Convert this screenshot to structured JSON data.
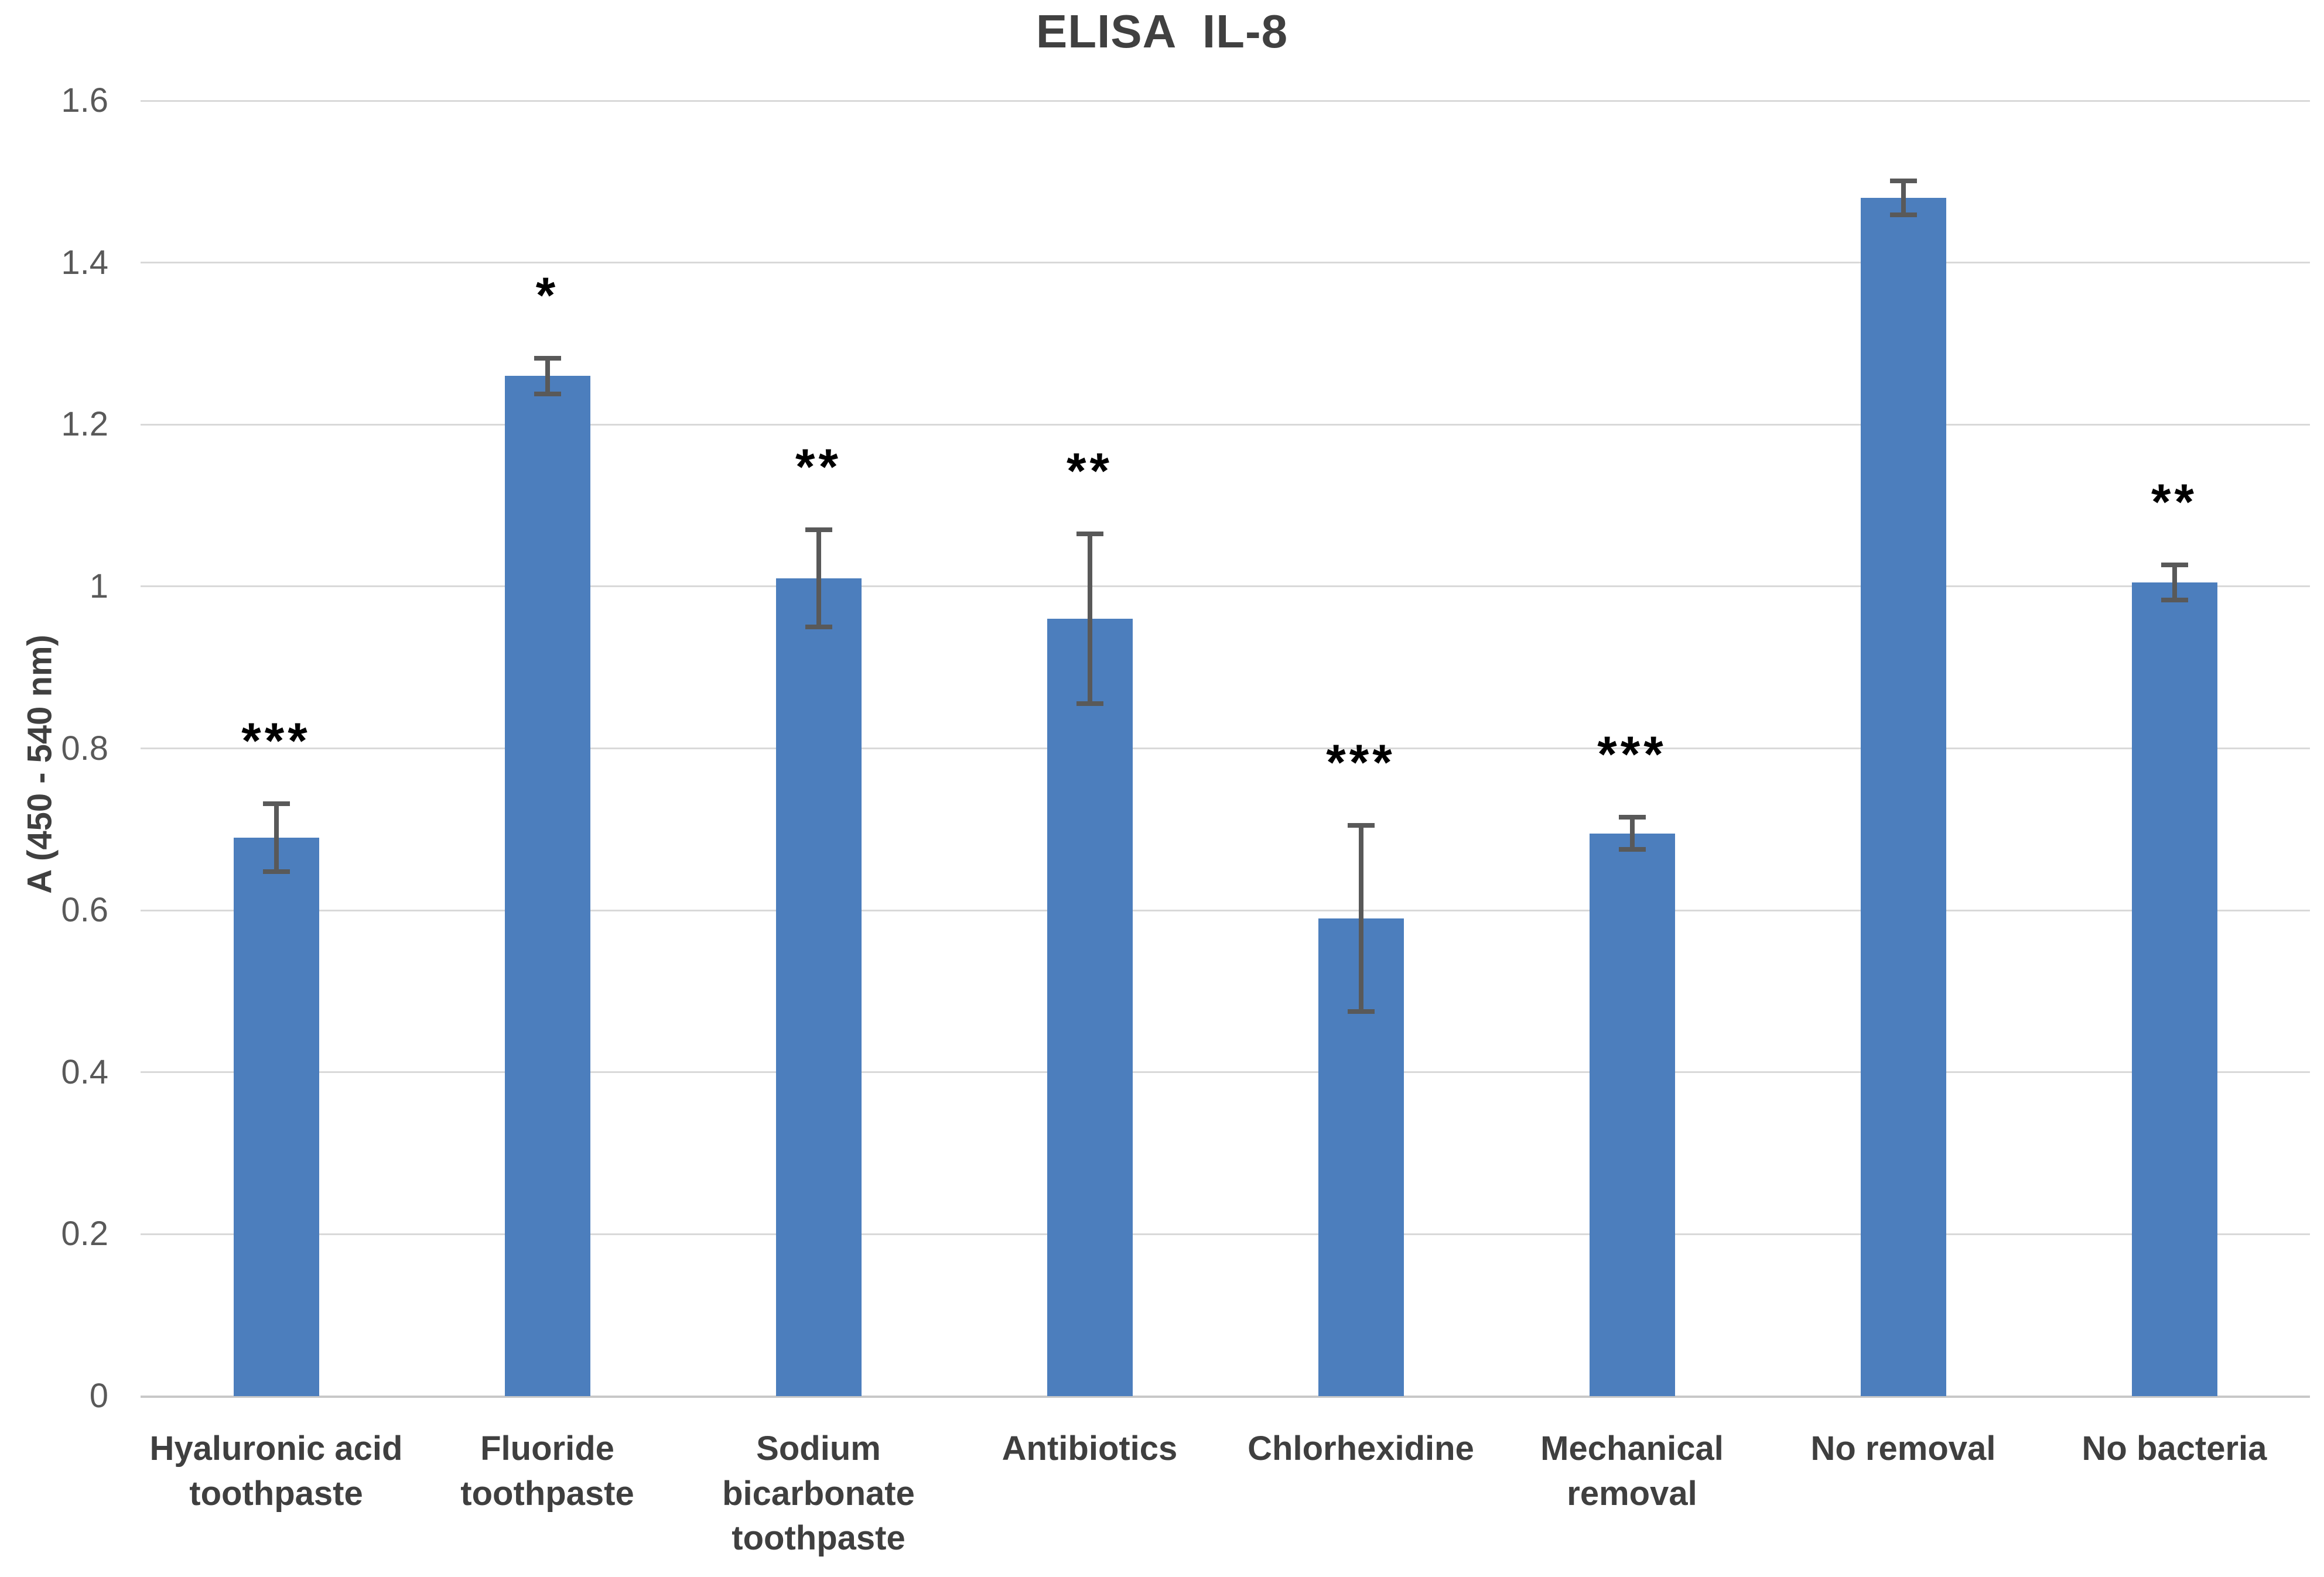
{
  "chart_data": {
    "type": "bar",
    "title": "ELISA  IL-8",
    "ylabel": "A (450 - 540 nm)",
    "xlabel": "",
    "categories": [
      "Hyaluronic acid toothpaste",
      "Fluoride toothpaste",
      "Sodium bicarbonate toothpaste",
      "Antibiotics",
      "Chlorhexidine",
      "Mechanical removal",
      "No removal",
      "No bacteria"
    ],
    "values": [
      0.69,
      1.26,
      1.01,
      0.96,
      0.59,
      0.695,
      1.48,
      1.005
    ],
    "error_bars": [
      0.042,
      0.022,
      0.06,
      0.105,
      0.115,
      0.02,
      0.021,
      0.022
    ],
    "significance": [
      "***",
      "*",
      "**",
      "**",
      "***",
      "***",
      "",
      "**"
    ],
    "ytick_labels": [
      "0",
      "0.2",
      "0.4",
      "0.6",
      "0.8",
      "1",
      "1.2",
      "1.4",
      "1.6"
    ],
    "ylim": [
      0,
      1.6
    ],
    "grid": "horizontal",
    "legend": "none",
    "colors": {
      "bar_fill": "#4c7ebd",
      "error_bar": "#595959",
      "gridline": "#d9d9d9",
      "axis_text": "#595959",
      "category_text": "#3f3f3f",
      "title_text": "#404040",
      "stars": "#000000"
    }
  }
}
